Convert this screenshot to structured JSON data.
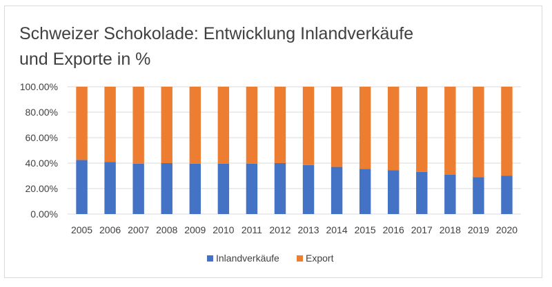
{
  "chart_data": {
    "type": "bar",
    "stacked": true,
    "title_line1": "Schweizer Schokolade: Entwicklung Inlandverkäufe",
    "title_line2": "und Exporte in %",
    "categories": [
      "2005",
      "2006",
      "2007",
      "2008",
      "2009",
      "2010",
      "2011",
      "2012",
      "2013",
      "2014",
      "2015",
      "2016",
      "2017",
      "2018",
      "2019",
      "2020"
    ],
    "series": [
      {
        "name": "Inlandverkäufe",
        "color": "#4472c4",
        "values": [
          42.5,
          41,
          39.5,
          40,
          39.5,
          39.5,
          39.5,
          40,
          38.5,
          37,
          35.5,
          34.5,
          33,
          31,
          29,
          30
        ]
      },
      {
        "name": "Export",
        "color": "#ed7d31",
        "values": [
          57.5,
          59,
          60.5,
          60,
          60.5,
          60.5,
          60.5,
          60,
          61.5,
          63,
          64.5,
          65.5,
          67,
          69,
          71,
          70
        ]
      }
    ],
    "y_ticks": [
      "0.00%",
      "20.00%",
      "40.00%",
      "60.00%",
      "80.00%",
      "100.00%"
    ],
    "ylim": [
      0,
      100
    ],
    "xlabel": "",
    "ylabel": "",
    "grid": true,
    "legend_position": "bottom"
  }
}
